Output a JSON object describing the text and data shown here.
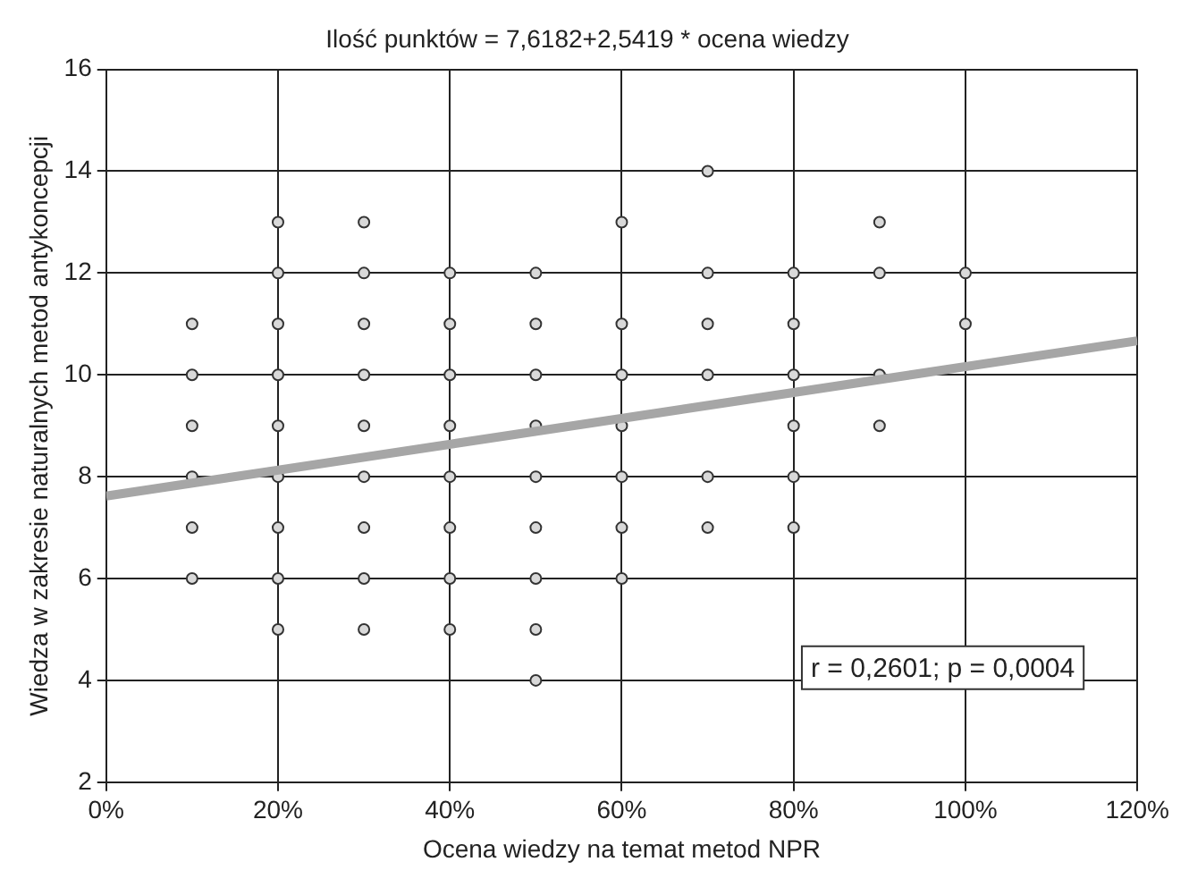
{
  "chart_data": {
    "type": "scatter",
    "title": "Ilość punktów = 7,6182+2,5419 * ocena wiedzy",
    "xlabel": "Ocena wiedzy na temat metod NPR",
    "ylabel": "Wiedza w zakresie naturalnych metod antykoncepcji",
    "series": [
      {
        "color": "#d9d9d9",
        "x": [
          10,
          10,
          10,
          10,
          10,
          10,
          20,
          20,
          20,
          20,
          20,
          20,
          20,
          20,
          20,
          30,
          30,
          30,
          30,
          30,
          30,
          30,
          30,
          30,
          40,
          40,
          40,
          40,
          40,
          40,
          40,
          40,
          50,
          50,
          50,
          50,
          50,
          50,
          50,
          50,
          50,
          60,
          60,
          60,
          60,
          60,
          60,
          60,
          70,
          70,
          70,
          70,
          70,
          70,
          80,
          80,
          80,
          80,
          80,
          80,
          90,
          90,
          90,
          90,
          100,
          100
        ],
        "values": [
          6,
          7,
          8,
          9,
          10,
          11,
          5,
          6,
          7,
          8,
          9,
          10,
          11,
          12,
          13,
          5,
          6,
          7,
          8,
          9,
          10,
          11,
          12,
          13,
          5,
          6,
          7,
          8,
          9,
          10,
          11,
          12,
          4,
          5,
          6,
          7,
          8,
          9,
          10,
          11,
          12,
          6,
          7,
          8,
          9,
          10,
          11,
          13,
          7,
          8,
          10,
          11,
          12,
          14,
          7,
          8,
          9,
          10,
          11,
          12,
          9,
          10,
          12,
          13,
          11,
          12
        ]
      },
      {
        "type": "line",
        "color": "#a6a6a6",
        "marker": "none",
        "x": [
          0,
          120
        ],
        "values": [
          7.62,
          10.67
        ]
      }
    ],
    "xlim": [
      0,
      120
    ],
    "xticks": [
      {
        "value": 0,
        "label": "0%"
      },
      {
        "value": 20,
        "label": "20%"
      },
      {
        "value": 40,
        "label": "40%"
      },
      {
        "value": 60,
        "label": "60%"
      },
      {
        "value": 80,
        "label": "80%"
      },
      {
        "value": 100,
        "label": "100%"
      },
      {
        "value": 120,
        "label": "120%"
      }
    ],
    "ylim": [
      2,
      16
    ],
    "yticks": [
      2,
      4,
      6,
      8,
      10,
      12,
      14,
      16
    ],
    "grid": true,
    "legend": false,
    "marker": "circle",
    "line_style": "solid",
    "annotations": [
      "r = 0,2601; p = 0,0004"
    ]
  }
}
